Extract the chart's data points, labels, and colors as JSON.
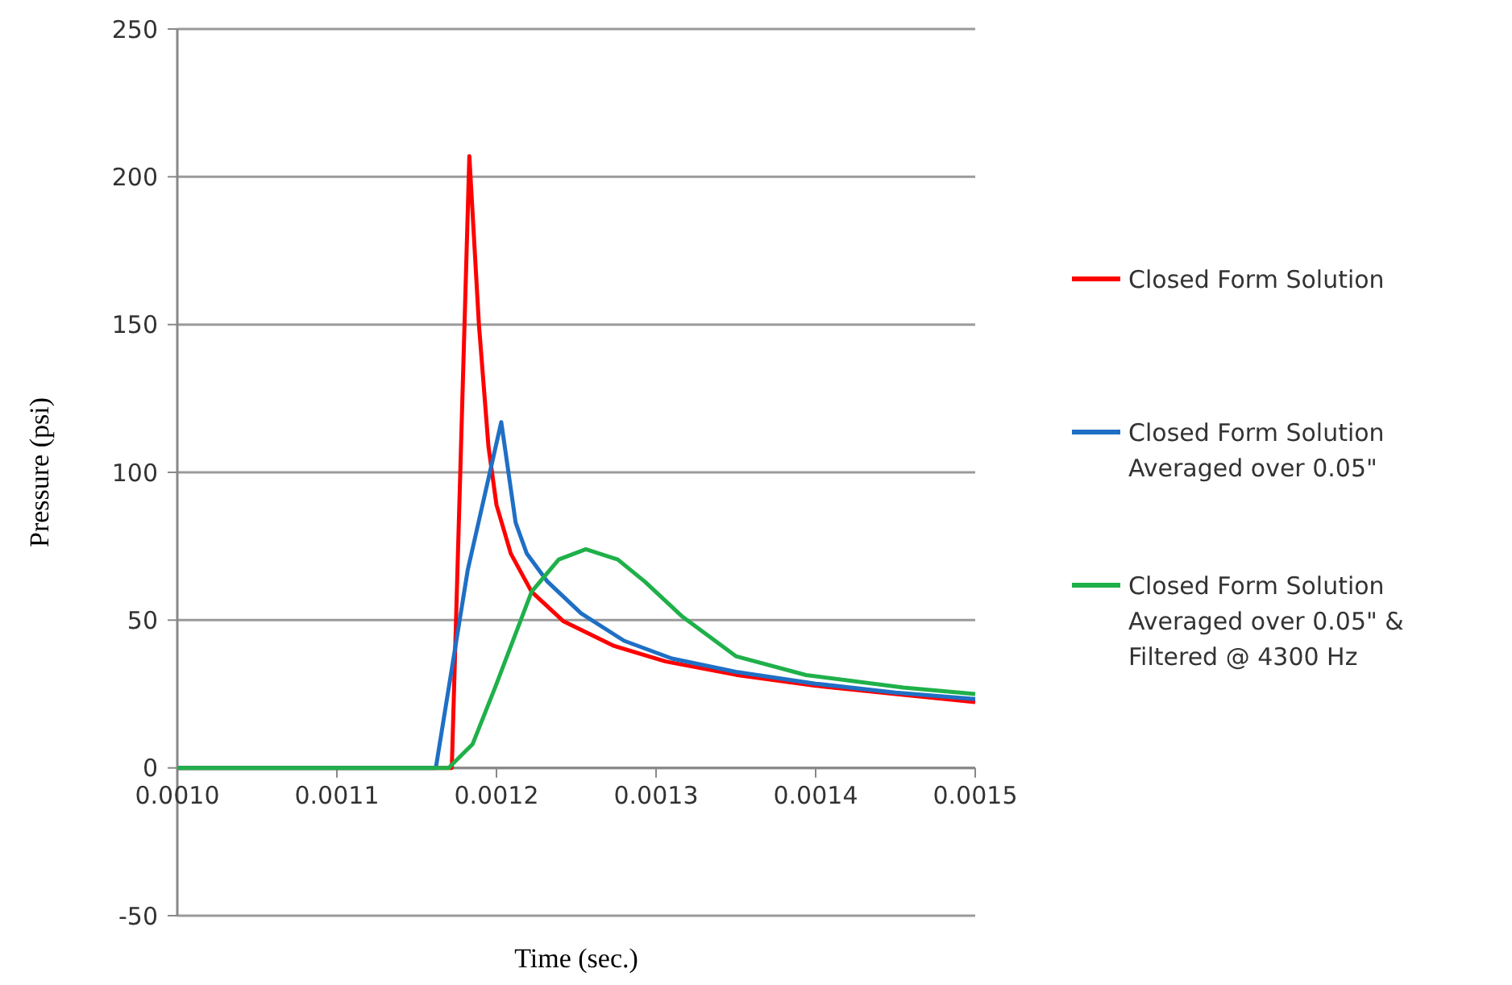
{
  "chart_data": {
    "type": "line",
    "xlabel": "Time (sec.)",
    "ylabel": "Pressure (psi)",
    "xlim": [
      0.001,
      0.0015
    ],
    "ylim": [
      -50,
      250
    ],
    "xticks": [
      {
        "value": 0.001,
        "label": "0.0010"
      },
      {
        "value": 0.0011,
        "label": "0.0011"
      },
      {
        "value": 0.0012,
        "label": "0.0012"
      },
      {
        "value": 0.0013,
        "label": "0.0013"
      },
      {
        "value": 0.0014,
        "label": "0.0014"
      },
      {
        "value": 0.0015,
        "label": "0.0015"
      }
    ],
    "yticks": [
      -50,
      0,
      50,
      100,
      150,
      200,
      250
    ],
    "grid": "y",
    "legend": "right",
    "marker": "none",
    "line_style": "solid",
    "series": [
      {
        "name": "Closed Form Solution",
        "color": "#ff0000",
        "x": [
          0.001,
          0.00117,
          0.001172,
          0.001183,
          0.001189,
          0.001195,
          0.0012,
          0.001209,
          0.001222,
          0.001242,
          0.001273,
          0.001306,
          0.00135,
          0.0014,
          0.00145,
          0.0015
        ],
        "values": [
          0,
          0,
          0,
          207,
          150,
          108.6,
          89,
          72.5,
          59.6,
          49.6,
          41.4,
          36,
          31.5,
          27.8,
          25,
          22.3
        ]
      },
      {
        "name": "Closed Form Solution\nAveraged over 0.05\"",
        "color": "#1f6fc5",
        "x": [
          0.001,
          0.00116,
          0.001162,
          0.001182,
          0.001203,
          0.001212,
          0.001219,
          0.001232,
          0.001253,
          0.00128,
          0.00131,
          0.00135,
          0.0014,
          0.00145,
          0.0015
        ],
        "values": [
          0,
          0,
          0,
          67,
          117,
          83,
          72.5,
          63,
          52.3,
          43,
          37,
          32.5,
          28.5,
          25.5,
          23.3
        ]
      },
      {
        "name": "Closed Form Solution\nAveraged over 0.05\" &\nFiltered @ 4300 Hz",
        "color": "#1fb04a",
        "x": [
          0.001,
          0.00117,
          0.001185,
          0.001199,
          0.001222,
          0.001239,
          0.001256,
          0.001276,
          0.001293,
          0.001316,
          0.00135,
          0.001394,
          0.001455,
          0.0015
        ],
        "values": [
          0,
          0,
          8,
          27,
          59.6,
          70.5,
          74,
          70.5,
          63,
          51.4,
          37.8,
          31.4,
          27.2,
          25
        ]
      }
    ]
  }
}
